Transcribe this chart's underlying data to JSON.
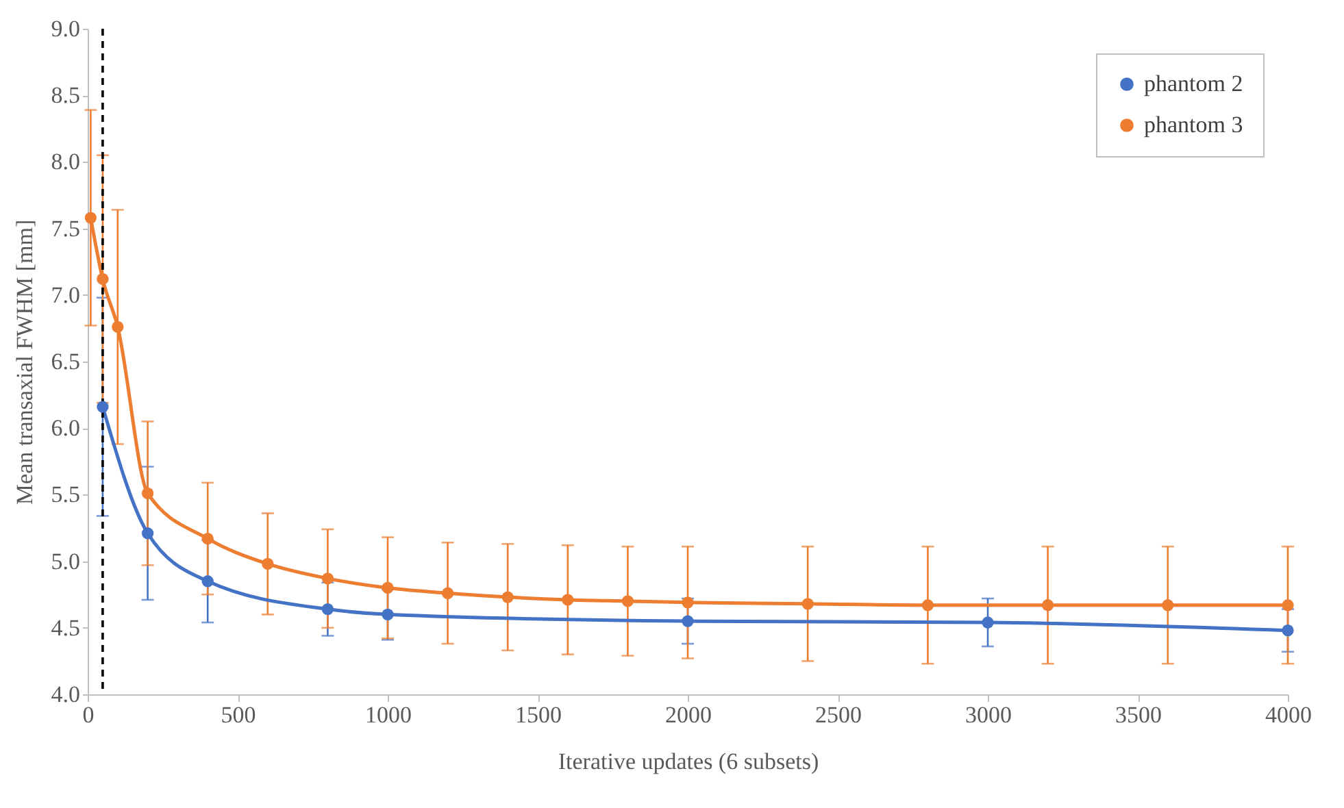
{
  "chart_data": {
    "type": "line",
    "xlabel": "Iterative updates (6 subsets)",
    "ylabel": "Mean transaxial FWHM [mm]",
    "xlim": [
      0,
      4000
    ],
    "xticks": [
      0,
      500,
      1000,
      1500,
      2000,
      2500,
      3000,
      3500,
      4000
    ],
    "ylim": [
      4.0,
      9.0
    ],
    "yticks": [
      {
        "value": 4,
        "label": "4.0"
      },
      {
        "value": 4.5,
        "label": "4.5"
      },
      {
        "value": 5,
        "label": "5.0"
      },
      {
        "value": 5.5,
        "label": "5.5"
      },
      {
        "value": 6,
        "label": "6.0"
      },
      {
        "value": 6.5,
        "label": "6.5"
      },
      {
        "value": 7,
        "label": "7.0"
      },
      {
        "value": 7.5,
        "label": "7.5"
      },
      {
        "value": 8,
        "label": "8.0"
      },
      {
        "value": 8.5,
        "label": "8.5"
      },
      {
        "value": 9,
        "label": "9.0"
      }
    ],
    "grid": false,
    "legend": "top right",
    "marker": "circle",
    "line_style": "solid",
    "ref_lines": [
      {
        "axis": "x",
        "value": 50,
        "label": null,
        "color": "#000000",
        "line_style": "dashed"
      }
    ],
    "series": [
      {
        "name": "phantom 2",
        "color": "#4472c4",
        "x": [
          50,
          200,
          400,
          800,
          1000,
          2000,
          3000,
          4000
        ],
        "values": [
          6.16,
          5.21,
          4.85,
          4.64,
          4.6,
          4.55,
          4.54,
          4.48
        ],
        "errors": [
          0.82,
          0.5,
          0.31,
          0.2,
          0.19,
          0.17,
          0.18,
          0.16
        ]
      },
      {
        "name": "phantom 3",
        "color": "#ed7d31",
        "x": [
          10,
          50,
          100,
          200,
          400,
          600,
          800,
          1000,
          1200,
          1400,
          1600,
          1800,
          2000,
          2400,
          2800,
          3200,
          3600,
          4000
        ],
        "values": [
          7.58,
          7.12,
          6.76,
          5.51,
          5.17,
          4.98,
          4.87,
          4.8,
          4.76,
          4.73,
          4.71,
          4.7,
          4.69,
          4.68,
          4.67,
          4.67,
          4.67,
          4.67
        ],
        "errors": [
          0.81,
          0.93,
          0.88,
          0.54,
          0.42,
          0.38,
          0.37,
          0.38,
          0.38,
          0.4,
          0.41,
          0.41,
          0.42,
          0.43,
          0.44,
          0.44,
          0.44,
          0.44
        ]
      }
    ]
  }
}
